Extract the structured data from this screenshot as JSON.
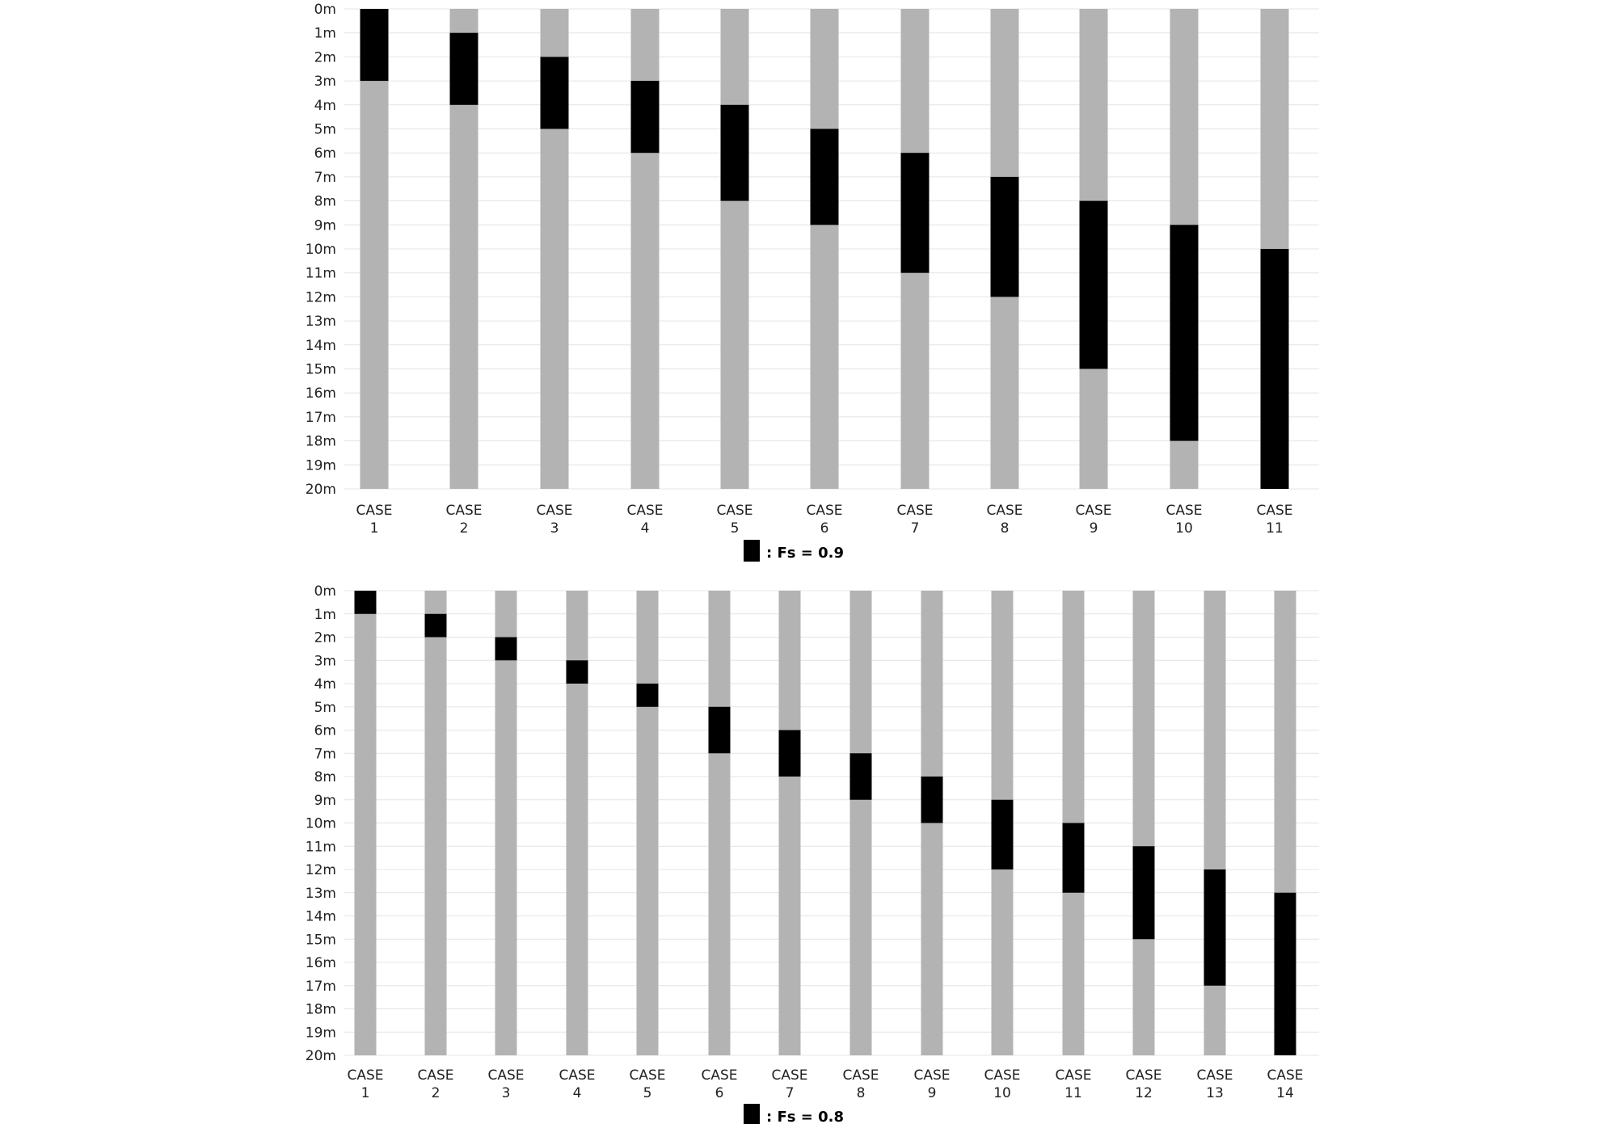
{
  "colors": {
    "depth_bar": "#b3b3b3",
    "fs_zone": "#000000",
    "grid": "#e4e4e4"
  },
  "chart_data": [
    {
      "type": "bar",
      "orientation": "vertical-range",
      "y_axis": {
        "ticks": [
          "0m",
          "1m",
          "2m",
          "3m",
          "4m",
          "5m",
          "6m",
          "7m",
          "8m",
          "9m",
          "10m",
          "11m",
          "12m",
          "13m",
          "14m",
          "15m",
          "16m",
          "17m",
          "18m",
          "19m",
          "20m"
        ],
        "range": [
          0,
          20
        ],
        "inverted": true
      },
      "grid": true,
      "bar_range": [
        0,
        20
      ],
      "categories": [
        [
          "CASE",
          "1"
        ],
        [
          "CASE",
          "2"
        ],
        [
          "CASE",
          "3"
        ],
        [
          "CASE",
          "4"
        ],
        [
          "CASE",
          "5"
        ],
        [
          "CASE",
          "6"
        ],
        [
          "CASE",
          "7"
        ],
        [
          "CASE",
          "8"
        ],
        [
          "CASE",
          "9"
        ],
        [
          "CASE",
          "10"
        ],
        [
          "CASE",
          "11"
        ]
      ],
      "fs_zones": [
        [
          0,
          3
        ],
        [
          1,
          4
        ],
        [
          2,
          5
        ],
        [
          3,
          6
        ],
        [
          4,
          8
        ],
        [
          5,
          9
        ],
        [
          6,
          11
        ],
        [
          7,
          12
        ],
        [
          8,
          15
        ],
        [
          9,
          18
        ],
        [
          10,
          20
        ]
      ],
      "legend": {
        "label": ": Fs = 0.9",
        "placement": "bottom-center"
      }
    },
    {
      "type": "bar",
      "orientation": "vertical-range",
      "y_axis": {
        "ticks": [
          "0m",
          "1m",
          "2m",
          "3m",
          "4m",
          "5m",
          "6m",
          "7m",
          "8m",
          "9m",
          "10m",
          "11m",
          "12m",
          "13m",
          "14m",
          "15m",
          "16m",
          "17m",
          "18m",
          "19m",
          "20m"
        ],
        "range": [
          0,
          20
        ],
        "inverted": true
      },
      "grid": true,
      "bar_range": [
        0,
        20
      ],
      "categories": [
        [
          "CASE",
          "1"
        ],
        [
          "CASE",
          "2"
        ],
        [
          "CASE",
          "3"
        ],
        [
          "CASE",
          "4"
        ],
        [
          "CASE",
          "5"
        ],
        [
          "CASE",
          "6"
        ],
        [
          "CASE",
          "7"
        ],
        [
          "CASE",
          "8"
        ],
        [
          "CASE",
          "9"
        ],
        [
          "CASE",
          "10"
        ],
        [
          "CASE",
          "11"
        ],
        [
          "CASE",
          "12"
        ],
        [
          "CASE",
          "13"
        ],
        [
          "CASE",
          "14"
        ]
      ],
      "fs_zones": [
        [
          0,
          1
        ],
        [
          1,
          2
        ],
        [
          2,
          3
        ],
        [
          3,
          4
        ],
        [
          4,
          5
        ],
        [
          5,
          7
        ],
        [
          6,
          8
        ],
        [
          7,
          9
        ],
        [
          8,
          10
        ],
        [
          9,
          12
        ],
        [
          10,
          13
        ],
        [
          11,
          15
        ],
        [
          12,
          17
        ],
        [
          13,
          20
        ]
      ],
      "legend": {
        "label": ": Fs = 0.8",
        "placement": "bottom-center"
      }
    }
  ]
}
